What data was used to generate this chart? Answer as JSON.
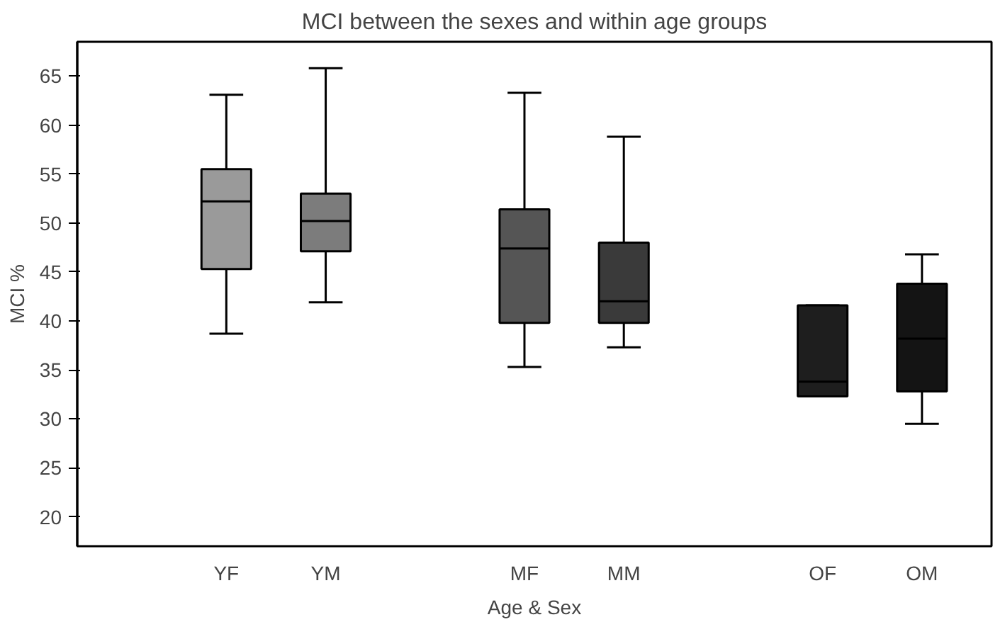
{
  "chart_data": {
    "type": "box",
    "title": "MCI between the sexes and within age groups",
    "xlabel": "Age & Sex",
    "ylabel": "MCI %",
    "categories": [
      "YF",
      "YM",
      null,
      "MF",
      "MM",
      null,
      "OF",
      "OM"
    ],
    "boxes": [
      {
        "low": 38.7,
        "q1": 45.3,
        "median": 52.2,
        "q3": 55.5,
        "high": 63.1
      },
      {
        "low": 41.9,
        "q1": 47.1,
        "median": 50.2,
        "q3": 53.0,
        "high": 65.8
      },
      null,
      {
        "low": 35.3,
        "q1": 39.8,
        "median": 47.4,
        "q3": 51.4,
        "high": 63.3
      },
      {
        "low": 37.3,
        "q1": 39.8,
        "median": 42.0,
        "q3": 48.0,
        "high": 58.8
      },
      null,
      {
        "low": 32.3,
        "q1": 32.3,
        "median": 33.8,
        "q3": 41.6,
        "high": 41.6
      },
      {
        "low": 29.5,
        "q1": 32.8,
        "median": 38.2,
        "q3": 43.8,
        "high": 46.8
      }
    ],
    "colors": [
      "#9a9a9a",
      "#7c7c7c",
      null,
      "#555555",
      "#3a3a3a",
      null,
      "#1e1e1e",
      "#141414"
    ],
    "ylim": [
      17,
      68.5
    ],
    "yticks": [
      20,
      25,
      30,
      35,
      40,
      45,
      50,
      55,
      60,
      65
    ],
    "grid": false
  }
}
